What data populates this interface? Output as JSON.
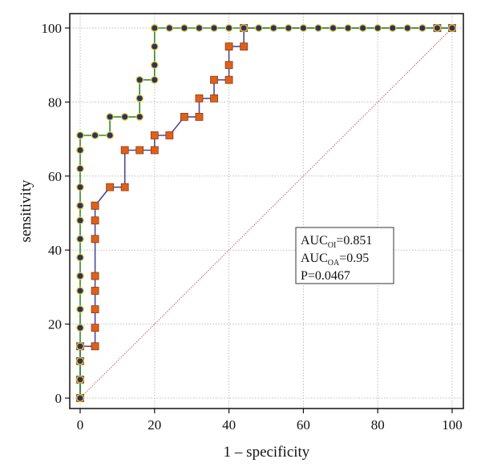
{
  "chart_data": {
    "type": "line",
    "title": "",
    "xlabel": "1 – specificity",
    "ylabel": "sensitivity",
    "xlim": [
      0,
      100
    ],
    "ylim": [
      0,
      100
    ],
    "x_ticks": [
      "0",
      "20",
      "40",
      "60",
      "80",
      "100"
    ],
    "y_ticks": [
      "0",
      "20",
      "40",
      "60",
      "80",
      "100"
    ],
    "grid": true,
    "colors": {
      "series_oi_line": "#2e8b2e",
      "series_oi_marker": "#2b2f7a",
      "series_oi_marker_edge": "#e8d21a",
      "series_oa_line": "#4a4a9a",
      "series_oa_marker": "#e0601a",
      "series_oa_marker_edge": "#8a3a10",
      "diagonal": "#d06060"
    },
    "series": [
      {
        "x": [
          0,
          0,
          0,
          0,
          0,
          0,
          0,
          0,
          0,
          0,
          0,
          0,
          0,
          0,
          0,
          0,
          4,
          8,
          8,
          12,
          16,
          16,
          16,
          20,
          20,
          20,
          20,
          20,
          20,
          24,
          28,
          32,
          36,
          40,
          44,
          48,
          52,
          56,
          60,
          64,
          68,
          72,
          76,
          80,
          84,
          88,
          92,
          96,
          100
        ],
        "y": [
          0,
          5,
          10,
          14,
          19,
          24,
          29,
          33,
          38,
          43,
          48,
          52,
          57,
          62,
          67,
          71,
          71,
          71,
          76,
          76,
          76,
          81,
          86,
          86,
          90,
          95,
          100,
          100,
          100,
          100,
          100,
          100,
          100,
          100,
          100,
          100,
          100,
          100,
          100,
          100,
          100,
          100,
          100,
          100,
          100,
          100,
          100,
          100,
          100
        ]
      },
      {
        "x": [
          0,
          0,
          0,
          0,
          4,
          4,
          4,
          4,
          4,
          4,
          4,
          4,
          4,
          8,
          12,
          12,
          16,
          20,
          20,
          24,
          28,
          32,
          32,
          36,
          36,
          40,
          40,
          40,
          44,
          44,
          96,
          100
        ],
        "y": [
          0,
          5,
          10,
          14,
          14,
          19,
          24,
          29,
          33,
          43,
          48,
          52,
          52,
          57,
          57,
          67,
          67,
          67,
          71,
          71,
          76,
          76,
          81,
          81,
          86,
          86,
          90,
          95,
          95,
          100,
          100,
          100
        ]
      }
    ],
    "legend": {
      "placement": "center-right",
      "lines": [
        {
          "main": "AUC",
          "sub": "OI",
          "rest": "=0.851"
        },
        {
          "main": "AUC",
          "sub": "OA",
          "rest": "=0.95"
        },
        {
          "main": "P=0.0467",
          "sub": "",
          "rest": ""
        }
      ]
    }
  }
}
